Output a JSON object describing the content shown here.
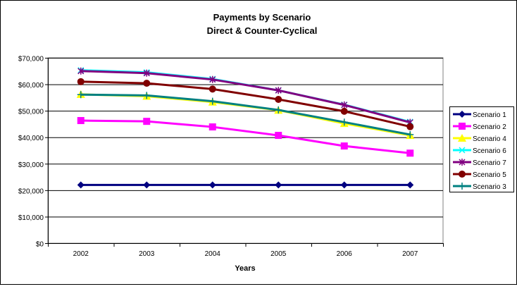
{
  "chart_data": {
    "type": "line",
    "title": "Payments by Scenario",
    "subtitle": "Direct & Counter-Cyclical",
    "xlabel": "Years",
    "ylabel": "",
    "categories": [
      "2002",
      "2003",
      "2004",
      "2005",
      "2006",
      "2007"
    ],
    "ylim": [
      0,
      70000
    ],
    "yticks": [
      0,
      10000,
      20000,
      30000,
      40000,
      50000,
      60000,
      70000
    ],
    "ytick_labels": [
      "$0",
      "$10,000",
      "$20,000",
      "$30,000",
      "$40,000",
      "$50,000",
      "$60,000",
      "$70,000"
    ],
    "grid": true,
    "legend_position": "right",
    "series": [
      {
        "name": "Scenario 1",
        "color": "#000080",
        "marker": "diamond",
        "values": [
          22000,
          22000,
          22000,
          22000,
          22000,
          22000
        ]
      },
      {
        "name": "Scenario 2",
        "color": "#FF00FF",
        "marker": "square",
        "values": [
          46300,
          46000,
          43900,
          40700,
          36700,
          34000
        ]
      },
      {
        "name": "Scenario 4",
        "color": "#FFFF00",
        "marker": "triangle",
        "values": [
          56200,
          55500,
          53300,
          50200,
          45200,
          40700
        ]
      },
      {
        "name": "Scenario 6",
        "color": "#00FFFF",
        "marker": "x",
        "values": [
          65300,
          64500,
          62000,
          57700,
          52300,
          45800
        ]
      },
      {
        "name": "Scenario 7",
        "color": "#800080",
        "marker": "star",
        "values": [
          65000,
          64200,
          61800,
          57700,
          52200,
          45600
        ]
      },
      {
        "name": "Scenario 5",
        "color": "#800000",
        "marker": "circle",
        "values": [
          61000,
          60400,
          58200,
          54300,
          49800,
          44000
        ]
      },
      {
        "name": "Scenario 3",
        "color": "#008080",
        "marker": "plus",
        "values": [
          56100,
          55800,
          53600,
          50300,
          45700,
          41000
        ]
      }
    ]
  }
}
